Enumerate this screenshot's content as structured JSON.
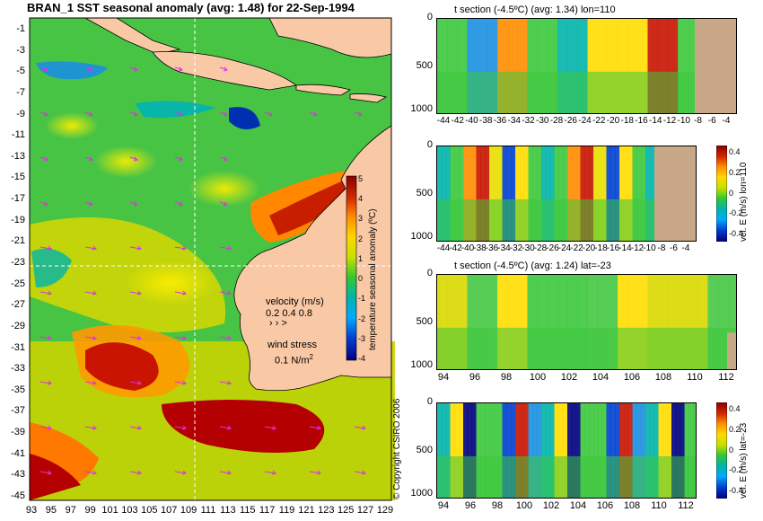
{
  "map": {
    "title": "BRAN_1  SST seasonal anomaly  (avg: 1.48) for 22-Sep-1994",
    "lat_labels": [
      "-1",
      "-3",
      "-5",
      "-7",
      "-9",
      "-11",
      "-13",
      "-15",
      "-17",
      "-19",
      "-21",
      "-23",
      "-25",
      "-27",
      "-29",
      "-31",
      "-33",
      "-35",
      "-37",
      "-39",
      "-41",
      "-43",
      "-45"
    ],
    "lon_labels": [
      "93",
      "95",
      "97",
      "99",
      "101",
      "103",
      "105",
      "107",
      "109",
      "111",
      "113",
      "115",
      "117",
      "119",
      "121",
      "123",
      "125",
      "127",
      "129"
    ],
    "colorbar": {
      "label": "temperature seasonal anomaly (ºC)",
      "ticks": [
        "5",
        "4",
        "3",
        "2",
        "1",
        "0",
        "-1",
        "-2",
        "-3",
        "-4"
      ],
      "range": [
        -4,
        5
      ],
      "colors": [
        "#8b0000",
        "#d42a00",
        "#ff8c00",
        "#ffd700",
        "#c8e000",
        "#32c832",
        "#00b4aa",
        "#00aaff",
        "#0040d0",
        "#000080"
      ]
    },
    "velocity_legend": {
      "title": "velocity (m/s)",
      "values": "0.2 0.4 0.8",
      "arrows": "›  ›  >"
    },
    "wind_legend": {
      "title": "wind stress",
      "value": "0.1 N/m",
      "superscript": "2"
    },
    "copyright": "© Copyright CSIRO 2006",
    "colors": {
      "land": "#f9c9a6",
      "warm": "#b80000",
      "green": "#45c842",
      "yellow": "#e8e000",
      "arrow": "#e030e0"
    }
  },
  "panels": [
    {
      "title": "t section (-4.5ºC) (avg: 1.34) lon=110",
      "y_ticks": [
        "0",
        "500",
        "1000"
      ],
      "x_ticks": [
        "-44",
        "-42",
        "-40",
        "-38",
        "-36",
        "-34",
        "-32",
        "-30",
        "-28",
        "-26",
        "-24",
        "-22",
        "-20",
        "-18",
        "-16",
        "-14",
        "-12",
        "-10",
        "-8",
        "-6",
        "-4"
      ],
      "colorbar": null
    },
    {
      "title": "",
      "y_ticks": [
        "0",
        "500",
        "1000"
      ],
      "x_ticks": [
        "-44",
        "-42",
        "-40",
        "-38",
        "-36",
        "-34",
        "-32",
        "-30",
        "-28",
        "-26",
        "-24",
        "-22",
        "-20",
        "-18",
        "-16",
        "-14",
        "-12",
        "-10",
        "-8",
        "-6",
        "-4"
      ],
      "colorbar": {
        "label": "vel. E (m/s) lon=110",
        "ticks": [
          "0.4",
          "0.2",
          "0",
          "-0.2",
          "-0.4"
        ]
      }
    },
    {
      "title": "t section (-4.5ºC) (avg: 1.24) lat=-23",
      "y_ticks": [
        "0",
        "500",
        "1000"
      ],
      "x_ticks": [
        "94",
        "96",
        "98",
        "100",
        "102",
        "104",
        "106",
        "108",
        "110",
        "112"
      ],
      "colorbar": null
    },
    {
      "title": "",
      "y_ticks": [
        "0",
        "500",
        "1000"
      ],
      "x_ticks": [
        "94",
        "96",
        "98",
        "100",
        "102",
        "104",
        "106",
        "108",
        "110",
        "112"
      ],
      "colorbar": {
        "label": "vel. E (m/s) lat=-23",
        "ticks": [
          "0.4",
          "0.2",
          "0",
          "-0.2",
          "-0.4"
        ]
      }
    }
  ]
}
